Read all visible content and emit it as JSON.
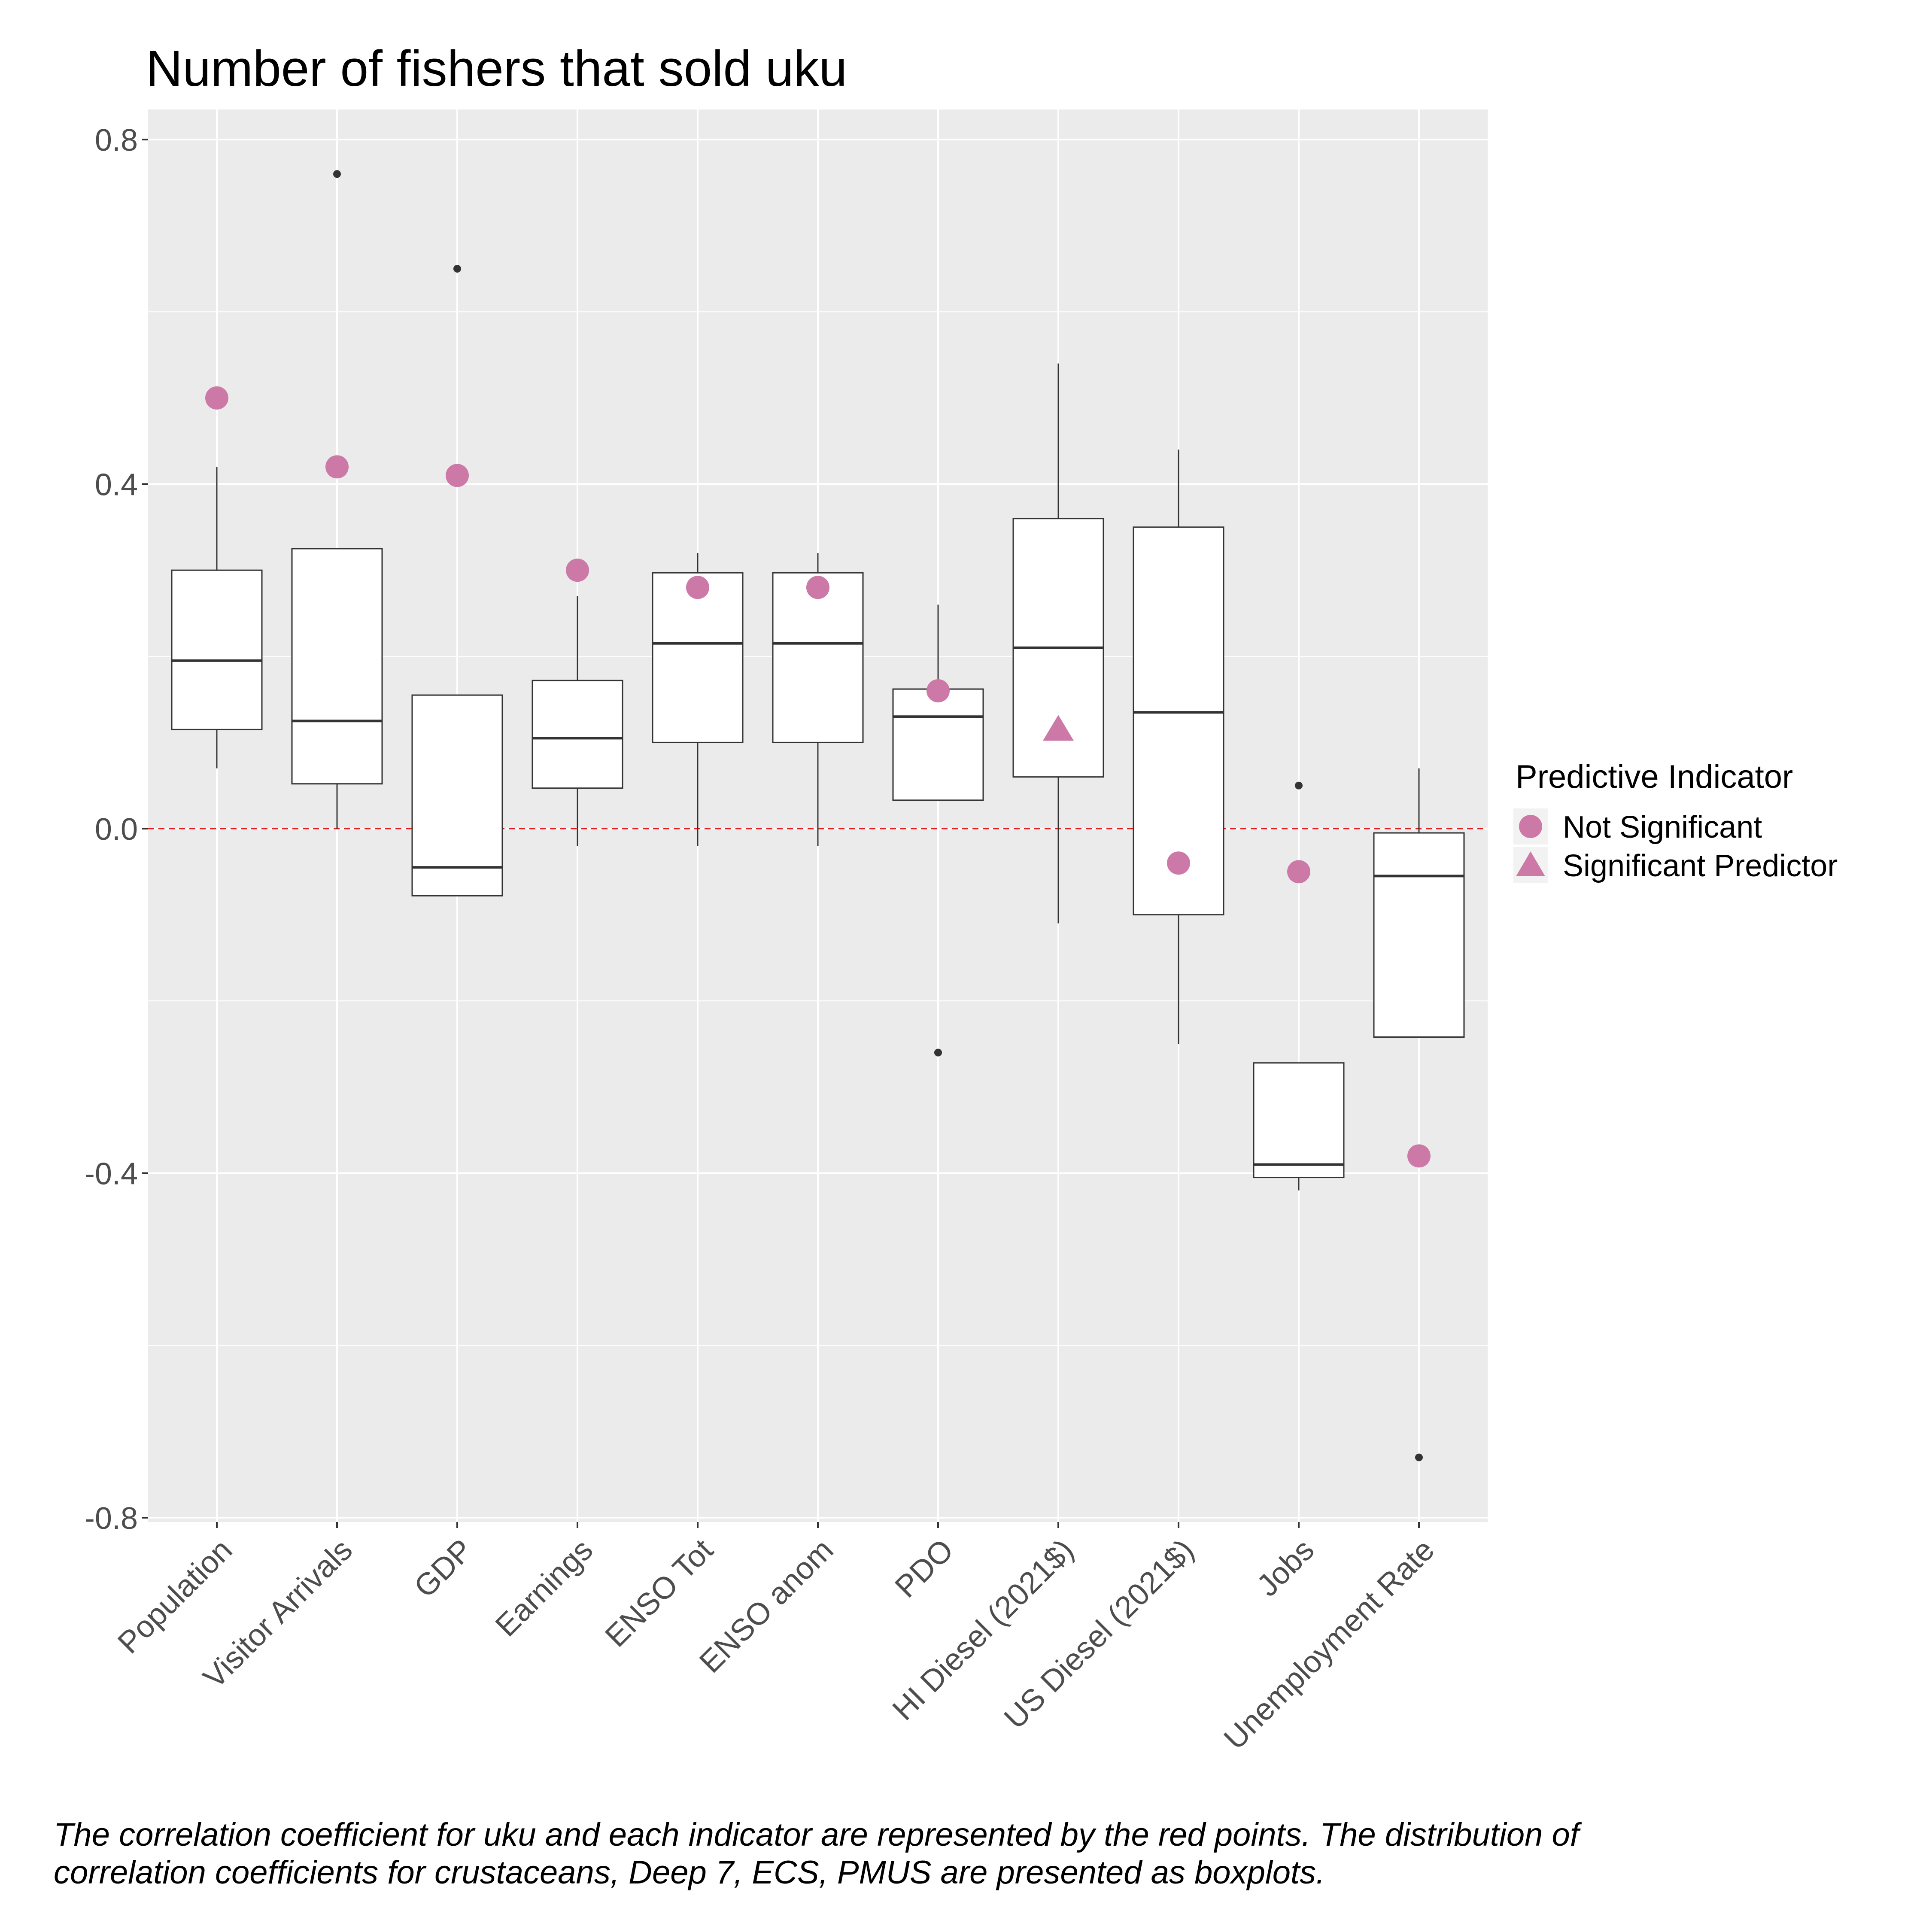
{
  "chart_data": {
    "type": "boxplot",
    "title": "Number of fishers that sold uku",
    "xlabel": "",
    "ylabel": "",
    "ylim": [
      -0.8,
      0.8
    ],
    "y_ticks": [
      0.8,
      0.4,
      0.0,
      -0.4,
      -0.8
    ],
    "y_tick_labels": [
      "0.8",
      "0.4",
      "0.0",
      "-0.4",
      "-0.8"
    ],
    "grid": true,
    "reference_line": {
      "y": 0,
      "color": "#e41a1c",
      "style": "dashed"
    },
    "categories": [
      "Population",
      "Visitor Arrivals",
      "GDP",
      "Earnings",
      "ENSO Tot",
      "ENSO anom",
      "PDO",
      "HI Diesel (2021$)",
      "US Diesel (2021$)",
      "Jobs",
      "Unemployment Rate"
    ],
    "boxes": [
      {
        "whisker_low": 0.07,
        "q1": 0.115,
        "median": 0.195,
        "q3": 0.3,
        "whisker_high": 0.42,
        "outliers": []
      },
      {
        "whisker_low": 0.0,
        "q1": 0.052,
        "median": 0.125,
        "q3": 0.325,
        "whisker_high": 0.325,
        "outliers": [
          0.76
        ]
      },
      {
        "whisker_low": -0.078,
        "q1": -0.078,
        "median": -0.045,
        "q3": 0.155,
        "whisker_high": 0.155,
        "outliers": [
          0.65
        ]
      },
      {
        "whisker_low": -0.02,
        "q1": 0.047,
        "median": 0.105,
        "q3": 0.172,
        "whisker_high": 0.27,
        "outliers": []
      },
      {
        "whisker_low": -0.02,
        "q1": 0.1,
        "median": 0.215,
        "q3": 0.297,
        "whisker_high": 0.32,
        "outliers": []
      },
      {
        "whisker_low": -0.02,
        "q1": 0.1,
        "median": 0.215,
        "q3": 0.297,
        "whisker_high": 0.32,
        "outliers": []
      },
      {
        "whisker_low": 0.033,
        "q1": 0.033,
        "median": 0.13,
        "q3": 0.162,
        "whisker_high": 0.26,
        "outliers": [
          -0.26
        ]
      },
      {
        "whisker_low": -0.11,
        "q1": 0.06,
        "median": 0.21,
        "q3": 0.36,
        "whisker_high": 0.54,
        "outliers": []
      },
      {
        "whisker_low": -0.25,
        "q1": -0.1,
        "median": 0.135,
        "q3": 0.35,
        "whisker_high": 0.44,
        "outliers": []
      },
      {
        "whisker_low": -0.42,
        "q1": -0.405,
        "median": -0.39,
        "q3": -0.272,
        "whisker_high": -0.272,
        "outliers": [
          0.05
        ]
      },
      {
        "whisker_low": -0.242,
        "q1": -0.242,
        "median": -0.055,
        "q3": -0.005,
        "whisker_high": 0.07,
        "outliers": [
          -0.73
        ]
      }
    ],
    "points": [
      {
        "value": 0.5,
        "type": "Not Significant"
      },
      {
        "value": 0.42,
        "type": "Not Significant"
      },
      {
        "value": 0.41,
        "type": "Not Significant"
      },
      {
        "value": 0.3,
        "type": "Not Significant"
      },
      {
        "value": 0.28,
        "type": "Not Significant"
      },
      {
        "value": 0.28,
        "type": "Not Significant"
      },
      {
        "value": 0.16,
        "type": "Not Significant"
      },
      {
        "value": 0.115,
        "type": "Significant Predictor"
      },
      {
        "value": -0.04,
        "type": "Not Significant"
      },
      {
        "value": -0.05,
        "type": "Not Significant"
      },
      {
        "value": -0.38,
        "type": "Not Significant"
      }
    ],
    "point_color": "#cc79a7",
    "legend": {
      "title": "Predictive Indicator",
      "position": "right",
      "items": [
        {
          "label": "Not Significant",
          "shape": "circle"
        },
        {
          "label": "Significant Predictor",
          "shape": "triangle"
        }
      ]
    },
    "caption": "The correlation coefficient for uku and each indicator are represented by the red points. The distribution of\n correlation coefficients for crustaceans, Deep 7, ECS, PMUS are presented as boxplots."
  }
}
